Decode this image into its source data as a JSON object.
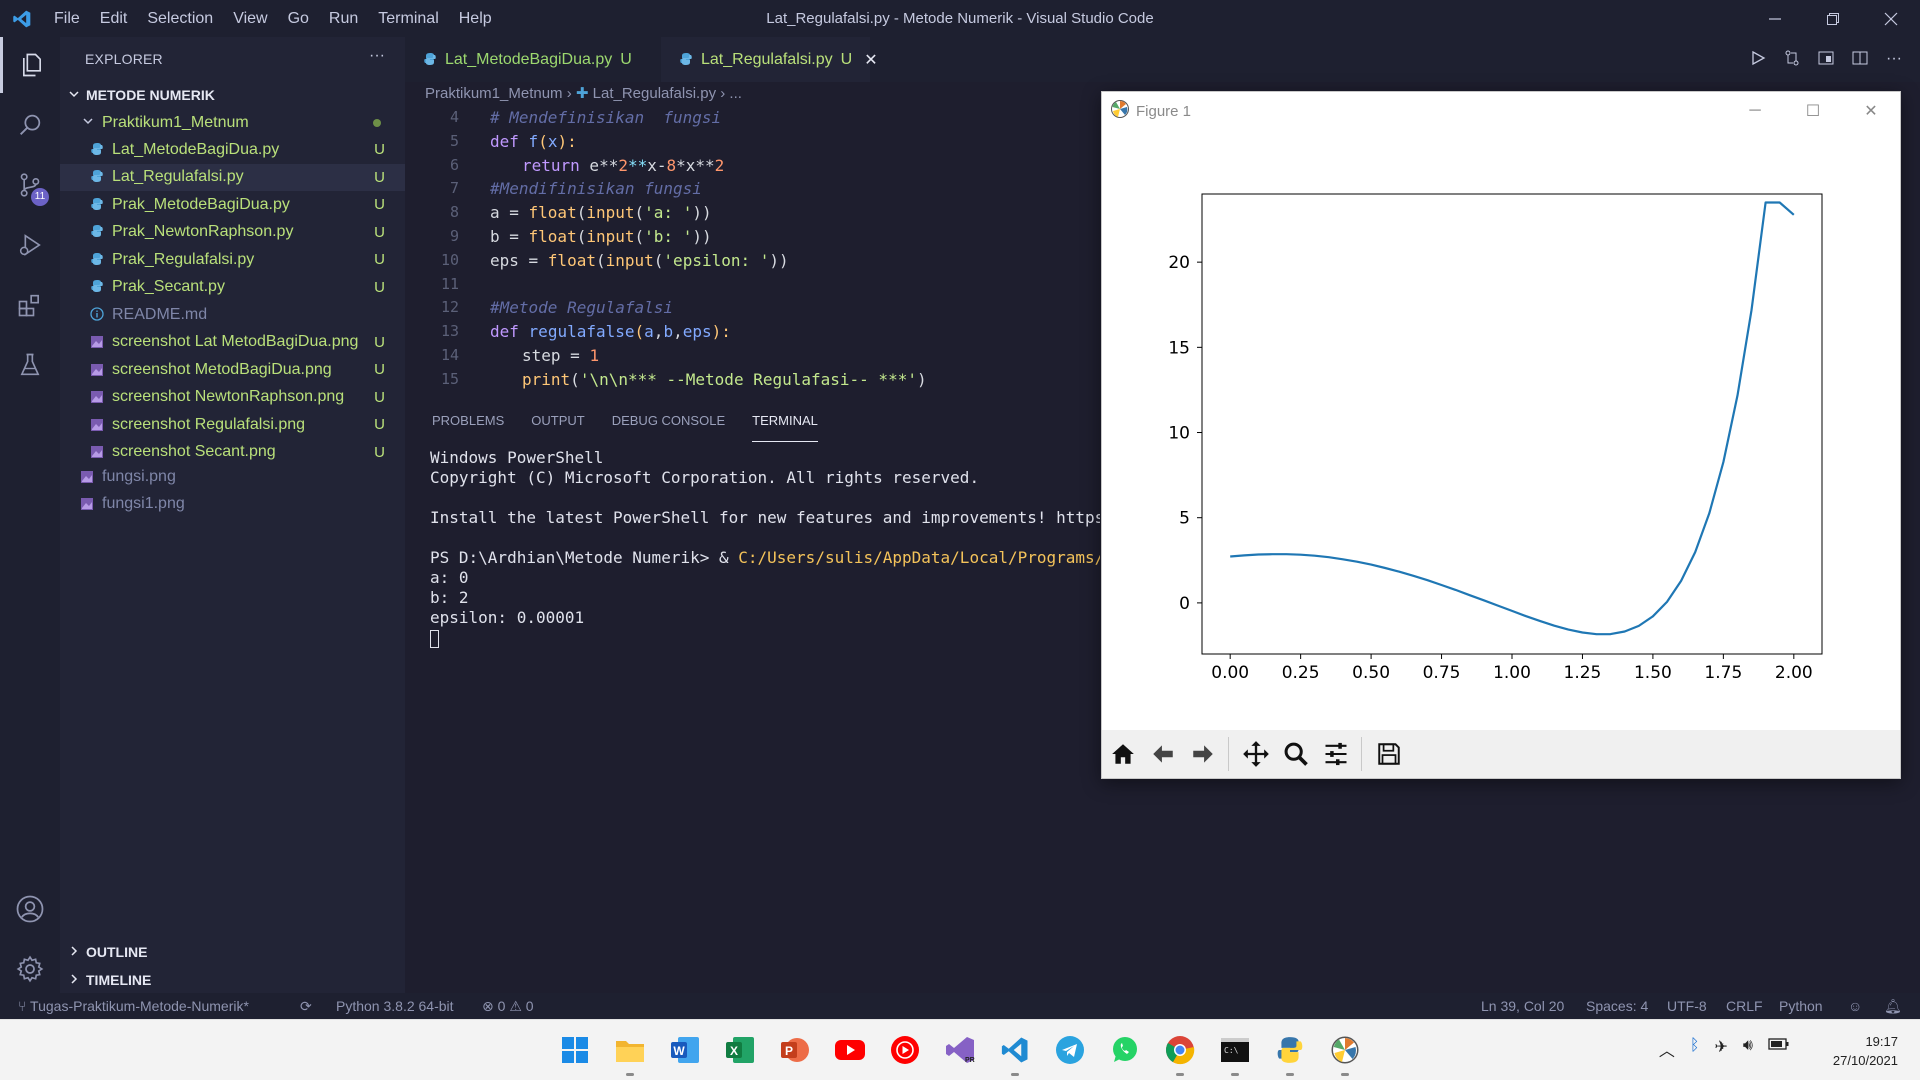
{
  "window": {
    "title": "Lat_Regulafalsi.py - Metode Numerik - Visual Studio Code"
  },
  "menu": [
    "File",
    "Edit",
    "Selection",
    "View",
    "Go",
    "Run",
    "Terminal",
    "Help"
  ],
  "activity": {
    "scm_badge": "11"
  },
  "explorer": {
    "header": "EXPLORER",
    "more": "···",
    "root": "METODE NUMERIK",
    "folder": "Praktikum1_Metnum",
    "files": [
      {
        "name": "Lat_MetodeBagiDua.py",
        "status": "U",
        "kind": "py"
      },
      {
        "name": "Lat_Regulafalsi.py",
        "status": "U",
        "kind": "py"
      },
      {
        "name": "Prak_MetodeBagiDua.py",
        "status": "U",
        "kind": "py"
      },
      {
        "name": "Prak_NewtonRaphson.py",
        "status": "U",
        "kind": "py"
      },
      {
        "name": "Prak_Regulafalsi.py",
        "status": "U",
        "kind": "py"
      },
      {
        "name": "Prak_Secant.py",
        "status": "U",
        "kind": "py"
      },
      {
        "name": "README.md",
        "status": "",
        "kind": "info"
      },
      {
        "name": "screenshot Lat MetodBagiDua.png",
        "status": "U",
        "kind": "img"
      },
      {
        "name": "screenshot MetodBagiDua.png",
        "status": "U",
        "kind": "img"
      },
      {
        "name": "screenshot NewtonRaphson.png",
        "status": "U",
        "kind": "img"
      },
      {
        "name": "screenshot Regulafalsi.png",
        "status": "U",
        "kind": "img"
      },
      {
        "name": "screenshot Secant.png",
        "status": "U",
        "kind": "img"
      }
    ],
    "root_files": [
      "fungsi.png",
      "fungsi1.png"
    ],
    "outline": "OUTLINE",
    "timeline": "TIMELINE"
  },
  "tabs": [
    {
      "label": "Lat_MetodeBagiDua.py",
      "status": "U"
    },
    {
      "label": "Lat_Regulafalsi.py",
      "status": "U",
      "close": "✕"
    }
  ],
  "breadcrumb": {
    "folder": "Praktikum1_Metnum",
    "file": "Lat_Regulafalsi.py",
    "rest": "..."
  },
  "code": {
    "line_numbers": [
      "4",
      "5",
      "6",
      "7",
      "8",
      "9",
      "10",
      "11",
      "12",
      "13",
      "14",
      "15"
    ],
    "l4": "# Mendefinisikan  fungsi",
    "l5": [
      "def",
      " ",
      "f",
      "(",
      "x",
      "):"
    ],
    "l6": [
      "return",
      " e**",
      "2",
      "**",
      "x-",
      "8",
      "*x**",
      "2"
    ],
    "l7": "#Mendifinisikan fungsi",
    "l8": [
      "a = ",
      "float",
      "(",
      "input",
      "(",
      "'a: '",
      "))"
    ],
    "l9": [
      "b = ",
      "float",
      "(",
      "input",
      "(",
      "'b: '",
      "))"
    ],
    "l10": [
      "eps = ",
      "float",
      "(",
      "input",
      "(",
      "'epsilon: '",
      "))"
    ],
    "l12": "#Metode Regulafalsi",
    "l13": [
      "def",
      " ",
      "regulafalse",
      "(",
      "a",
      ",",
      "b",
      ",",
      "eps",
      "):"
    ],
    "l14": [
      "step = ",
      "1"
    ],
    "l15": [
      "print",
      "(",
      "'\\n\\n*** --Metode Regulafasi-- ***'",
      ")"
    ]
  },
  "panel": {
    "tabs": [
      "PROBLEMS",
      "OUTPUT",
      "DEBUG CONSOLE",
      "TERMINAL"
    ],
    "terminal": {
      "line1": "Windows PowerShell",
      "line2": "Copyright (C) Microsoft Corporation. All rights reserved.",
      "line3": "Install the latest PowerShell for new features and improvements! https://ak",
      "prompt": "PS D:\\Ardhian\\Metode Numerik> & ",
      "path": "C:/Users/sulis/AppData/Local/Programs/Pytho",
      "a": "a: 0",
      "b": "b: 2",
      "eps": "epsilon: 0.00001"
    }
  },
  "statusbar": {
    "branch": "Tugas-Praktikum-Metode-Numerik*",
    "python": "Python 3.8.2 64-bit",
    "errors": "0",
    "warnings": "0",
    "position": "Ln 39, Col 20",
    "spaces": "Spaces: 4",
    "encoding": "UTF-8",
    "eol": "CRLF",
    "language": "Python"
  },
  "figure": {
    "title": "Figure 1",
    "controls": [
      "─",
      "☐",
      "✕"
    ]
  },
  "chart_data": {
    "type": "line",
    "title": "",
    "xlabel": "",
    "ylabel": "",
    "xlim": [
      -0.1,
      2.1
    ],
    "ylim": [
      -3,
      24
    ],
    "xticks": [
      "0.00",
      "0.25",
      "0.50",
      "0.75",
      "1.00",
      "1.25",
      "1.50",
      "1.75",
      "2.00"
    ],
    "yticks": [
      "0",
      "5",
      "10",
      "15",
      "20"
    ],
    "series": [
      {
        "color": "#1f77b4",
        "x": [
          0,
          0.05,
          0.1,
          0.15,
          0.2,
          0.25,
          0.3,
          0.35,
          0.4,
          0.45,
          0.5,
          0.55,
          0.6,
          0.65,
          0.7,
          0.75,
          0.8,
          0.85,
          0.9,
          0.95,
          1.0,
          1.05,
          1.1,
          1.15,
          1.2,
          1.25,
          1.3,
          1.35,
          1.4,
          1.45,
          1.5,
          1.55,
          1.6,
          1.65,
          1.7,
          1.75,
          1.8,
          1.85,
          1.9,
          1.95,
          2.0
        ],
        "y": [
          2.72,
          2.79,
          2.84,
          2.86,
          2.86,
          2.83,
          2.77,
          2.68,
          2.56,
          2.42,
          2.25,
          2.05,
          1.83,
          1.59,
          1.33,
          1.05,
          0.76,
          0.45,
          0.15,
          -0.16,
          -0.47,
          -0.78,
          -1.07,
          -1.34,
          -1.57,
          -1.74,
          -1.84,
          -1.83,
          -1.68,
          -1.35,
          -0.79,
          0.06,
          1.29,
          2.98,
          5.26,
          8.27,
          12.18,
          17.18,
          23.5,
          23.5,
          22.78
        ]
      }
    ]
  },
  "taskbar": {
    "apps": [
      "windows-start",
      "file-explorer",
      "word",
      "excel",
      "powerpoint",
      "youtube",
      "youtube-music",
      "visual-studio-preview",
      "vscode",
      "telegram",
      "whatsapp",
      "chrome",
      "terminal",
      "python-idle",
      "matplotlib-figure"
    ],
    "time": "19:17",
    "date": "27/10/2021"
  }
}
